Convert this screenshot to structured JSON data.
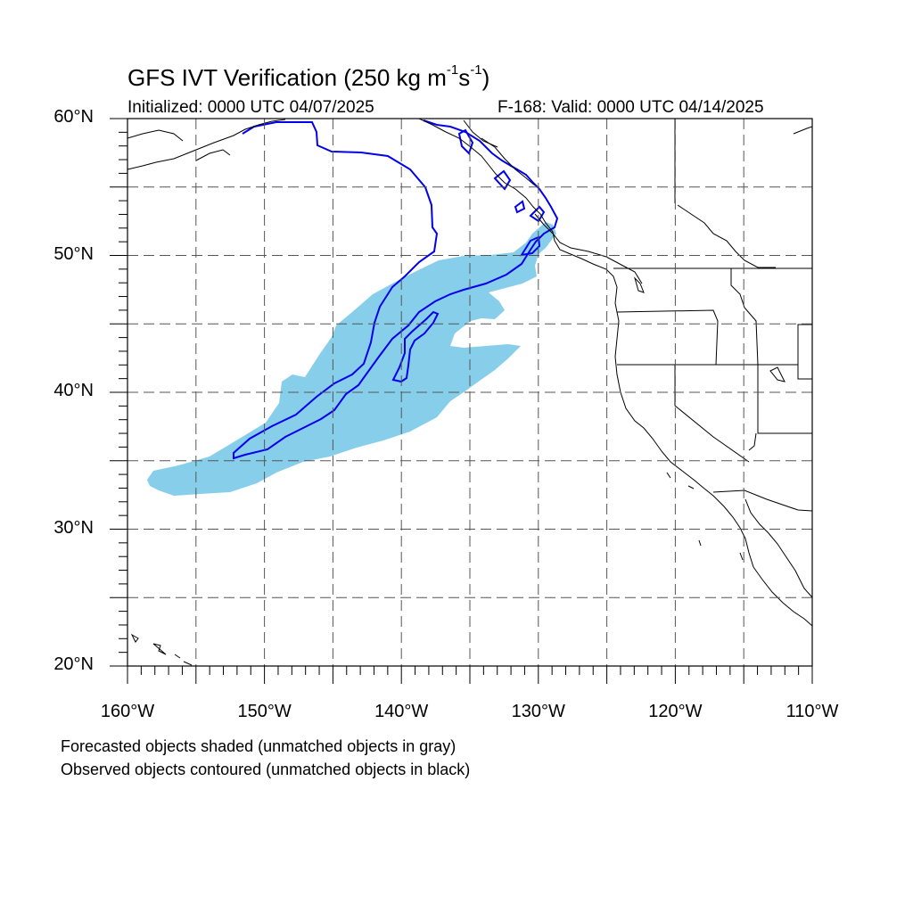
{
  "title": {
    "main": "GFS IVT Verification (250 kg m",
    "sup1": "-1",
    "mid": "s",
    "sup2": "-1",
    "end": ")"
  },
  "initialized": "Initialized: 0000 UTC 04/07/2025",
  "valid": "F-168: Valid: 0000 UTC 04/14/2025",
  "lat_labels": [
    {
      "text": "60°N",
      "lat": 60
    },
    {
      "text": "50°N",
      "lat": 50
    },
    {
      "text": "40°N",
      "lat": 40
    },
    {
      "text": "30°N",
      "lat": 30
    },
    {
      "text": "20°N",
      "lat": 20
    }
  ],
  "lon_labels": [
    {
      "text": "160°W",
      "lon": -160
    },
    {
      "text": "150°W",
      "lon": -150
    },
    {
      "text": "140°W",
      "lon": -140
    },
    {
      "text": "130°W",
      "lon": -130
    },
    {
      "text": "120°W",
      "lon": -120
    },
    {
      "text": "110°W",
      "lon": -110
    }
  ],
  "notes": [
    "Forecasted objects shaded (unmatched objects in gray)",
    "Observed objects contoured (unmatched objects in black)"
  ],
  "map": {
    "lon_range": [
      -160,
      -110
    ],
    "lat_range": [
      20,
      60
    ],
    "grid_interval_deg": 5,
    "forecast_color": "#87ceeb",
    "observed_color": "#0000ee",
    "coast_color": "#000000"
  }
}
